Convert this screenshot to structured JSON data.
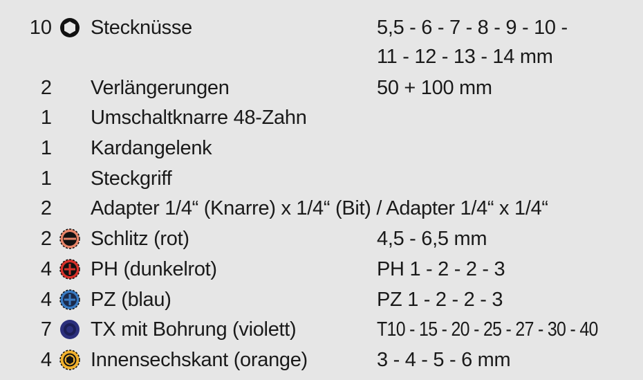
{
  "items": [
    {
      "qty": "10",
      "icon": "hex-socket-icon",
      "name": "Stecknüsse",
      "spec": "5,5 - 6 - 7 - 8 - 9 - 10 -",
      "spec_line2": "11 - 12 - 13 - 14 mm"
    },
    {
      "qty": "2",
      "name": "Verlängerungen",
      "spec": "50 + 100 mm"
    },
    {
      "qty": "1",
      "name": "Umschaltknarre 48-Zahn"
    },
    {
      "qty": "1",
      "name": "Kardangelenk"
    },
    {
      "qty": "1",
      "name": "Steckgriff"
    },
    {
      "qty": "2",
      "name": "Adapter 1/4“ (Knarre) x 1/4“ (Bit) / Adapter 1/4“ x 1/4“"
    },
    {
      "qty": "2",
      "icon": "slotted-bit-icon",
      "color": "#e8866a",
      "name": "Schlitz (rot)",
      "spec": "4,5 - 6,5 mm"
    },
    {
      "qty": "4",
      "icon": "phillips-bit-icon",
      "color": "#d8322b",
      "name": "PH (dunkelrot)",
      "spec": "PH 1 - 2 - 2 - 3"
    },
    {
      "qty": "4",
      "icon": "pozidriv-bit-icon",
      "color": "#3a7cc4",
      "name": "PZ (blau)",
      "spec": "PZ 1 - 2 - 2 - 3"
    },
    {
      "qty": "7",
      "icon": "torx-bit-icon",
      "color": "#2b2f7c",
      "name": "TX mit Bohrung (violett)",
      "spec": "T10 - 15 - 20 - 25 - 27 - 30 - 40"
    },
    {
      "qty": "4",
      "icon": "hex-bit-icon",
      "color": "#f2b22e",
      "name": "Innensechskant (orange)",
      "spec": "3 - 4 - 5 - 6 mm"
    }
  ]
}
